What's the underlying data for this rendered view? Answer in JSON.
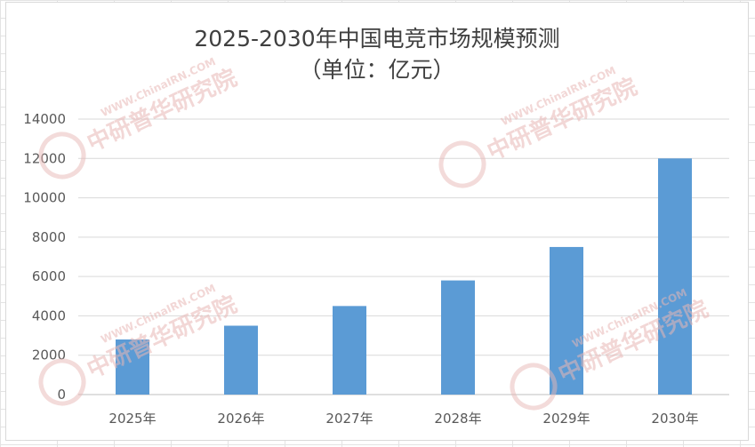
{
  "chart_data": {
    "type": "bar",
    "title_line1": "2025-2030年中国电竞市场规模预测",
    "title_line2": "（单位：亿元）",
    "categories": [
      "2025年",
      "2026年",
      "2027年",
      "2028年",
      "2029年",
      "2030年"
    ],
    "values": [
      2800,
      3500,
      4500,
      5800,
      7500,
      12000
    ],
    "ylim": [
      0,
      14000
    ],
    "yticks": [
      0,
      2000,
      4000,
      6000,
      8000,
      10000,
      12000,
      14000
    ],
    "bar_color": "#5b9bd5",
    "grid": true,
    "legend": "none"
  },
  "watermark": {
    "text": "中研普华研究院",
    "url": "WWW.ChinaIRN.COM",
    "logo": "CIRN",
    "color": "#e8b7b5"
  }
}
